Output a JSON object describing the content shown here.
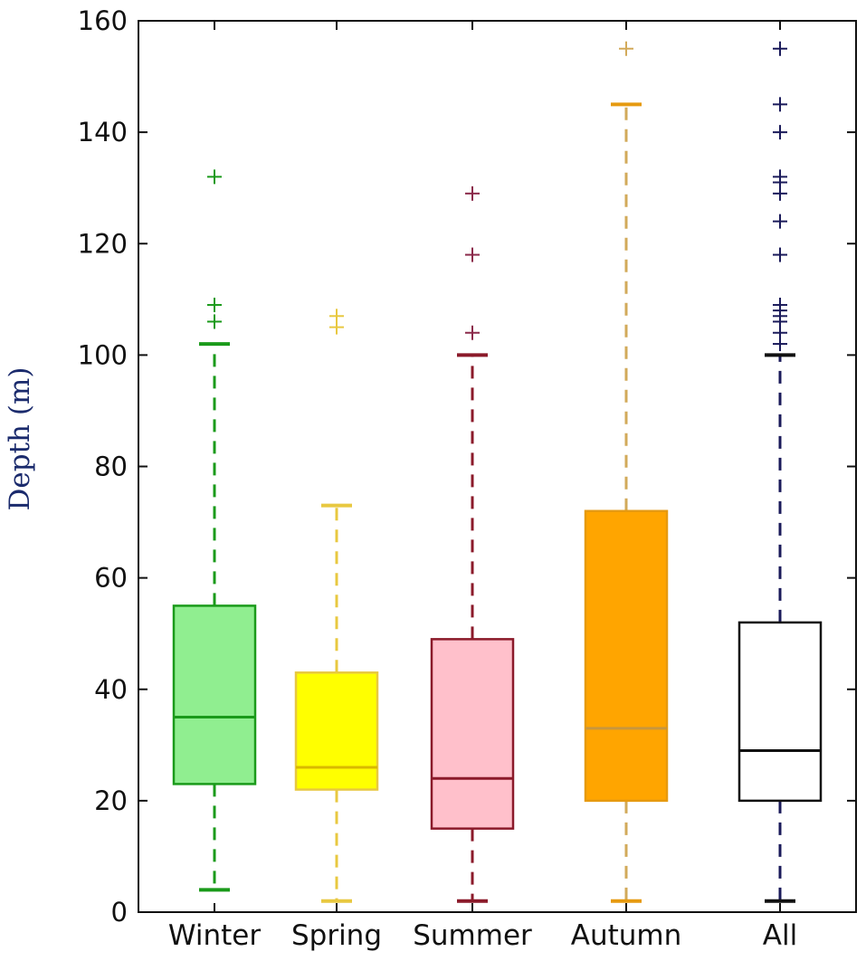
{
  "chart_data": {
    "type": "box",
    "ylabel": "Depth (m)",
    "xlabel": "",
    "title": "",
    "ylim": [
      0,
      160
    ],
    "yticks": [
      0,
      20,
      40,
      60,
      80,
      100,
      120,
      140,
      160
    ],
    "grid": false,
    "categories": [
      "Winter",
      "Spring",
      "Summer",
      "Autumn",
      "All"
    ],
    "boxes": [
      {
        "category": "Winter",
        "whisker_low": 4,
        "q1": 23,
        "median": 35,
        "q3": 55,
        "whisker_high": 102,
        "outliers": [
          106,
          109,
          132
        ],
        "fill": "#90ee90",
        "edge": "#1a9a1a",
        "whisker_color": "#1a9a1a"
      },
      {
        "category": "Spring",
        "whisker_low": 2,
        "q1": 22,
        "median": 26,
        "q3": 43,
        "whisker_high": 73,
        "outliers": [
          105,
          107
        ],
        "fill": "#ffff00",
        "edge": "#e8c840",
        "whisker_color": "#e8c840"
      },
      {
        "category": "Summer",
        "whisker_low": 2,
        "q1": 15,
        "median": 24,
        "q3": 49,
        "whisker_high": 100,
        "outliers": [
          104,
          118,
          129
        ],
        "fill": "#ffc0cb",
        "edge": "#8b1a2a",
        "whisker_color": "#8b1a2a"
      },
      {
        "category": "Autumn",
        "whisker_low": 2,
        "q1": 20,
        "median": 33,
        "q3": 72,
        "whisker_high": 145,
        "outliers": [
          155
        ],
        "fill": "#ffa500",
        "edge": "#e69a10",
        "whisker_color": "#d2aa5a"
      },
      {
        "category": "All",
        "whisker_low": 2,
        "q1": 20,
        "median": 29,
        "q3": 52,
        "whisker_high": 100,
        "outliers": [
          102,
          104,
          106,
          107,
          108,
          109,
          118,
          124,
          129,
          131,
          132,
          140,
          145,
          155
        ],
        "fill": "#ffffff",
        "edge": "#111111",
        "whisker_color": "#1a1a5a"
      }
    ]
  }
}
